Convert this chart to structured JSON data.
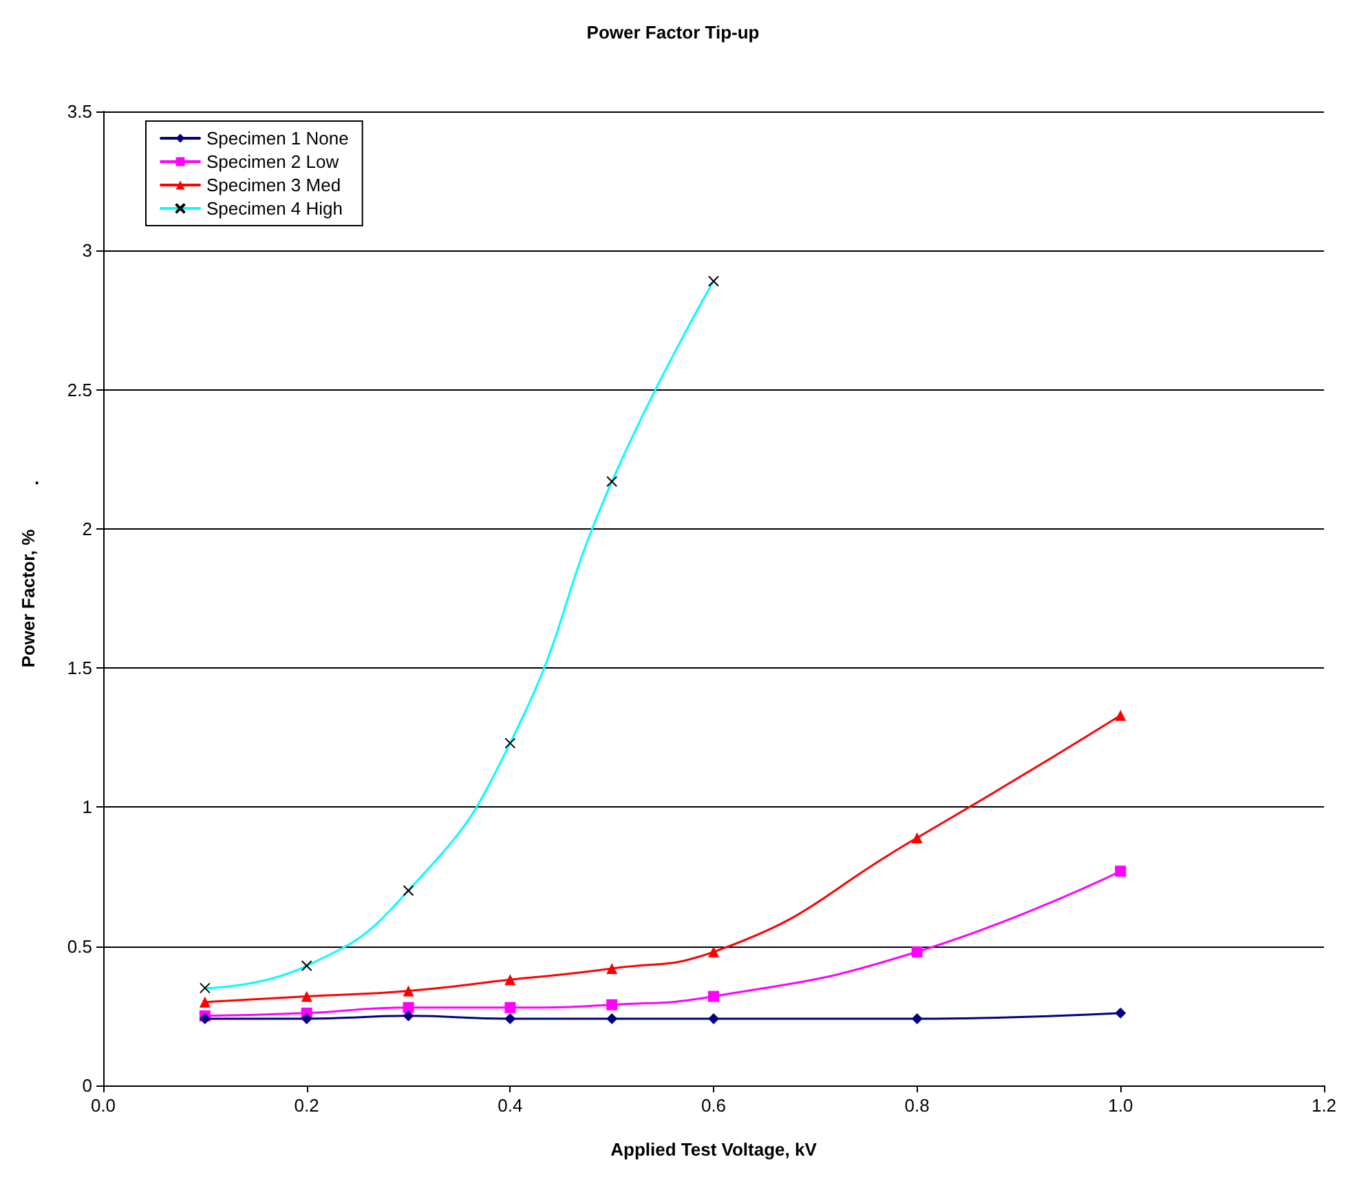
{
  "chart_data": {
    "type": "line",
    "title": "Power Factor Tip-up",
    "xlabel": "Applied Test Voltage, kV",
    "ylabel": "Power Factor, %",
    "annotations": [
      "."
    ],
    "xlim": [
      0,
      1.2
    ],
    "xticks": [
      {
        "value": 0,
        "label": "0.0"
      },
      {
        "value": 0.2,
        "label": "0.2"
      },
      {
        "value": 0.4,
        "label": "0.4"
      },
      {
        "value": 0.6,
        "label": "0.6"
      },
      {
        "value": 0.8,
        "label": "0.8"
      },
      {
        "value": 1,
        "label": "1.0"
      },
      {
        "value": 1.2,
        "label": "1.2"
      }
    ],
    "ylim": [
      0,
      3.5
    ],
    "yticks": [
      0,
      0.5,
      1,
      1.5,
      2,
      2.5,
      3,
      3.5
    ],
    "grid": "y",
    "legend": "top left",
    "line_style": "solid",
    "series": [
      {
        "name": "Specimen 1 None",
        "color": "#000080",
        "marker": "diamond",
        "x": [
          0.1,
          0.2,
          0.3,
          0.4,
          0.5,
          0.6,
          0.8,
          1.0
        ],
        "values": [
          0.24,
          0.24,
          0.25,
          0.24,
          0.24,
          0.24,
          0.24,
          0.26
        ]
      },
      {
        "name": "Specimen 2 Low",
        "color": "#ff00ff",
        "marker": "square",
        "x": [
          0.1,
          0.2,
          0.3,
          0.4,
          0.5,
          0.6,
          0.8,
          1.0
        ],
        "values": [
          0.25,
          0.26,
          0.28,
          0.28,
          0.29,
          0.32,
          0.48,
          0.77
        ]
      },
      {
        "name": "Specimen 3 Med",
        "color": "#ff0000",
        "marker": "triangle",
        "x": [
          0.1,
          0.2,
          0.3,
          0.4,
          0.5,
          0.6,
          0.8,
          1.0
        ],
        "values": [
          0.3,
          0.32,
          0.34,
          0.38,
          0.42,
          0.48,
          0.89,
          1.33
        ]
      },
      {
        "name": "Specimen 4 High",
        "color": "#00ffff",
        "marker": "cross",
        "x": [
          0.1,
          0.2,
          0.3,
          0.4,
          0.5,
          0.6
        ],
        "values": [
          0.35,
          0.43,
          0.7,
          1.23,
          2.17,
          2.89
        ]
      }
    ]
  }
}
